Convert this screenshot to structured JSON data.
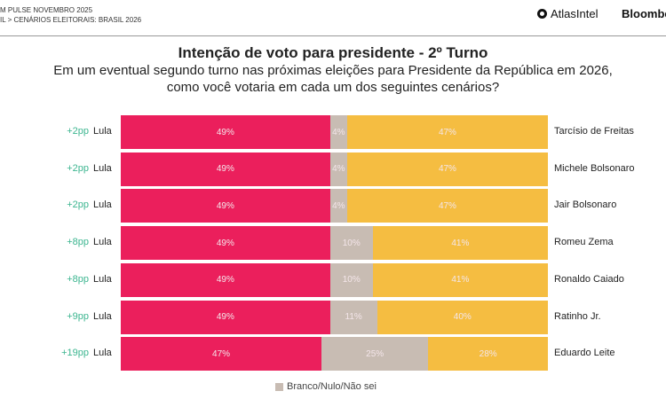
{
  "header": {
    "line1": "M PULSE NOVEMBRO 2025",
    "line2": "IL > CENÁRIOS ELEITORAIS: BRASIL 2026",
    "logo1": "AtlasIntel",
    "logo2": "Bloombe"
  },
  "chart_data": {
    "type": "bar",
    "stacked": true,
    "orientation": "horizontal",
    "title": "Intenção de voto para presidente - 2º Turno",
    "subtitle": "Em um eventual segundo turno nas próximas eleições para Presidente da República em 2026, como você votaria em cada um dos seguintes cenários?",
    "colors": {
      "lula": "#eb1f5c",
      "branco": "#c8bcb3",
      "opponent": "#f5bd41",
      "diff": "#3bb58f"
    },
    "legend": "Branco/Nulo/Não sei",
    "rows": [
      {
        "diff": "+2pp",
        "left": "Lula",
        "lula": 49,
        "branco": 4,
        "opp": 47,
        "opponent": "Tarcísio de Freitas"
      },
      {
        "diff": "+2pp",
        "left": "Lula",
        "lula": 49,
        "branco": 4,
        "opp": 47,
        "opponent": "Michele Bolsonaro"
      },
      {
        "diff": "+2pp",
        "left": "Lula",
        "lula": 49,
        "branco": 4,
        "opp": 47,
        "opponent": "Jair Bolsonaro"
      },
      {
        "diff": "+8pp",
        "left": "Lula",
        "lula": 49,
        "branco": 10,
        "opp": 41,
        "opponent": "Romeu Zema"
      },
      {
        "diff": "+8pp",
        "left": "Lula",
        "lula": 49,
        "branco": 10,
        "opp": 41,
        "opponent": "Ronaldo Caiado"
      },
      {
        "diff": "+9pp",
        "left": "Lula",
        "lula": 49,
        "branco": 11,
        "opp": 40,
        "opponent": "Ratinho Jr."
      },
      {
        "diff": "+19pp",
        "left": "Lula",
        "lula": 47,
        "branco": 25,
        "opp": 28,
        "opponent": "Eduardo Leite"
      }
    ]
  }
}
